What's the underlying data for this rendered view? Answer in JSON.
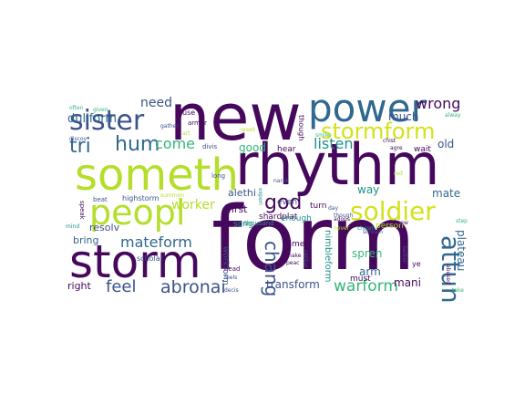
{
  "cloud": {
    "palette": {
      "purple": "#46085c",
      "indigo": "#3b528b",
      "blue": "#31688e",
      "teal": "#21918c",
      "green": "#35b779",
      "lime": "#b5de2b",
      "yellow": "#d2e21b"
    },
    "words": [
      {
        "text": "form",
        "color": "#46085c"
      },
      {
        "text": "new",
        "color": "#46085c"
      },
      {
        "text": "rhythm",
        "color": "#46085c"
      },
      {
        "text": "someth",
        "color": "#b5de2b"
      },
      {
        "text": "storm",
        "color": "#46085c"
      },
      {
        "text": "power",
        "color": "#31688e"
      },
      {
        "text": "peopl",
        "color": "#b5de2b"
      },
      {
        "text": "stormform",
        "color": "#d2e21b"
      },
      {
        "text": "soldier",
        "color": "#d2e21b"
      },
      {
        "text": "sister",
        "color": "#3b528b"
      },
      {
        "text": "attun",
        "color": "#31688e"
      },
      {
        "text": "god",
        "color": "#46085c"
      },
      {
        "text": "hum",
        "color": "#31688e"
      },
      {
        "text": "tri",
        "color": "#31688e"
      },
      {
        "text": "abronai",
        "color": "#3b528b"
      },
      {
        "text": "mateform",
        "color": "#31688e"
      },
      {
        "text": "warform",
        "color": "#35b779"
      },
      {
        "text": "chang",
        "color": "#3b528b"
      },
      {
        "text": "feel",
        "color": "#3b528b"
      },
      {
        "text": "listen",
        "color": "#21918c"
      },
      {
        "text": "come",
        "color": "#35b779"
      },
      {
        "text": "wrong",
        "color": "#46085c"
      },
      {
        "text": "dullform",
        "color": "#31688e"
      },
      {
        "text": "need",
        "color": "#3b528b"
      },
      {
        "text": "good",
        "color": "#35b779"
      },
      {
        "text": "worker",
        "color": "#b5de2b"
      },
      {
        "text": "much",
        "color": "#3b528b"
      },
      {
        "text": "old",
        "color": "#3b528b"
      },
      {
        "text": "way",
        "color": "#21918c"
      },
      {
        "text": "mate",
        "color": "#31688e"
      },
      {
        "text": "spren",
        "color": "#35b779"
      },
      {
        "text": "arm",
        "color": "#31688e"
      },
      {
        "text": "mani",
        "color": "#46085c"
      },
      {
        "text": "plateau",
        "color": "#31688e"
      },
      {
        "text": "transform",
        "color": "#3b528b"
      },
      {
        "text": "right",
        "color": "#46085c"
      },
      {
        "text": "bring",
        "color": "#31688e"
      },
      {
        "text": "resolv",
        "color": "#3b528b"
      },
      {
        "text": "first",
        "color": "#46085c"
      },
      {
        "text": "alethi",
        "color": "#3b528b"
      },
      {
        "text": "song",
        "color": "#21918c"
      },
      {
        "text": "shardplat",
        "color": "#46085c"
      },
      {
        "text": "nimbleform",
        "color": "#21918c"
      },
      {
        "text": "workform",
        "color": "#3b528b"
      },
      {
        "text": "enough",
        "color": "#21918c"
      },
      {
        "text": "even",
        "color": "#3b528b"
      },
      {
        "text": "turn",
        "color": "#46085c"
      },
      {
        "text": "hear",
        "color": "#46085c"
      },
      {
        "text": "wait",
        "color": "#46085c"
      },
      {
        "text": "must",
        "color": "#46085c"
      },
      {
        "text": "time",
        "color": "#46085c"
      },
      {
        "text": "person",
        "color": "#b5de2b"
      },
      {
        "text": "highstorm",
        "color": "#3b528b"
      },
      {
        "text": "scholar",
        "color": "#3b528b"
      },
      {
        "text": "gather",
        "color": "#3b528b"
      },
      {
        "text": "armor",
        "color": "#46085c"
      },
      {
        "text": "divis",
        "color": "#3b528b"
      },
      {
        "text": "long",
        "color": "#3b528b"
      },
      {
        "text": "thousand",
        "color": "#21918c"
      },
      {
        "text": "speak",
        "color": "#46085c"
      },
      {
        "text": "beat",
        "color": "#3b528b"
      },
      {
        "text": "mind",
        "color": "#21918c"
      },
      {
        "text": "though",
        "color": "#46085c"
      },
      {
        "text": "use",
        "color": "#46085c"
      },
      {
        "text": "often",
        "color": "#35b779"
      },
      {
        "text": "given",
        "color": "#35b779"
      },
      {
        "text": "discov",
        "color": "#3b528b"
      },
      {
        "text": "art",
        "color": "#b5de2b"
      },
      {
        "text": "greet",
        "color": "#b5de2b"
      },
      {
        "text": "chist",
        "color": "#46085c"
      },
      {
        "text": "agre",
        "color": "#46085c"
      },
      {
        "text": "alway",
        "color": "#35b779"
      },
      {
        "text": "red",
        "color": "#b5de2b"
      },
      {
        "text": "knew",
        "color": "#46085c"
      },
      {
        "text": "scream",
        "color": "#3b528b"
      },
      {
        "text": "never",
        "color": "#b5de2b"
      },
      {
        "text": "narak",
        "color": "#3b528b"
      },
      {
        "text": "experi",
        "color": "#21918c"
      },
      {
        "text": "smile",
        "color": "#35b779"
      },
      {
        "text": "summon",
        "color": "#b5de2b"
      },
      {
        "text": "adops",
        "color": "#46085c"
      },
      {
        "text": "chasm",
        "color": "#21918c"
      },
      {
        "text": "better",
        "color": "#3b528b"
      },
      {
        "text": "ye",
        "color": "#46085c"
      },
      {
        "text": "abused",
        "color": "#46085c"
      },
      {
        "text": "step",
        "color": "#35b779"
      },
      {
        "text": "take",
        "color": "#35b779"
      },
      {
        "text": "head",
        "color": "#46085c"
      },
      {
        "text": "make",
        "color": "#46085c"
      },
      {
        "text": "peac",
        "color": "#46085c"
      },
      {
        "text": "decis",
        "color": "#3b528b"
      },
      {
        "text": "feels",
        "color": "#3b528b"
      },
      {
        "text": "centur",
        "color": "#3b528b"
      },
      {
        "text": "day",
        "color": "#3b528b"
      },
      {
        "text": "though",
        "color": "#3b528b"
      }
    ]
  }
}
